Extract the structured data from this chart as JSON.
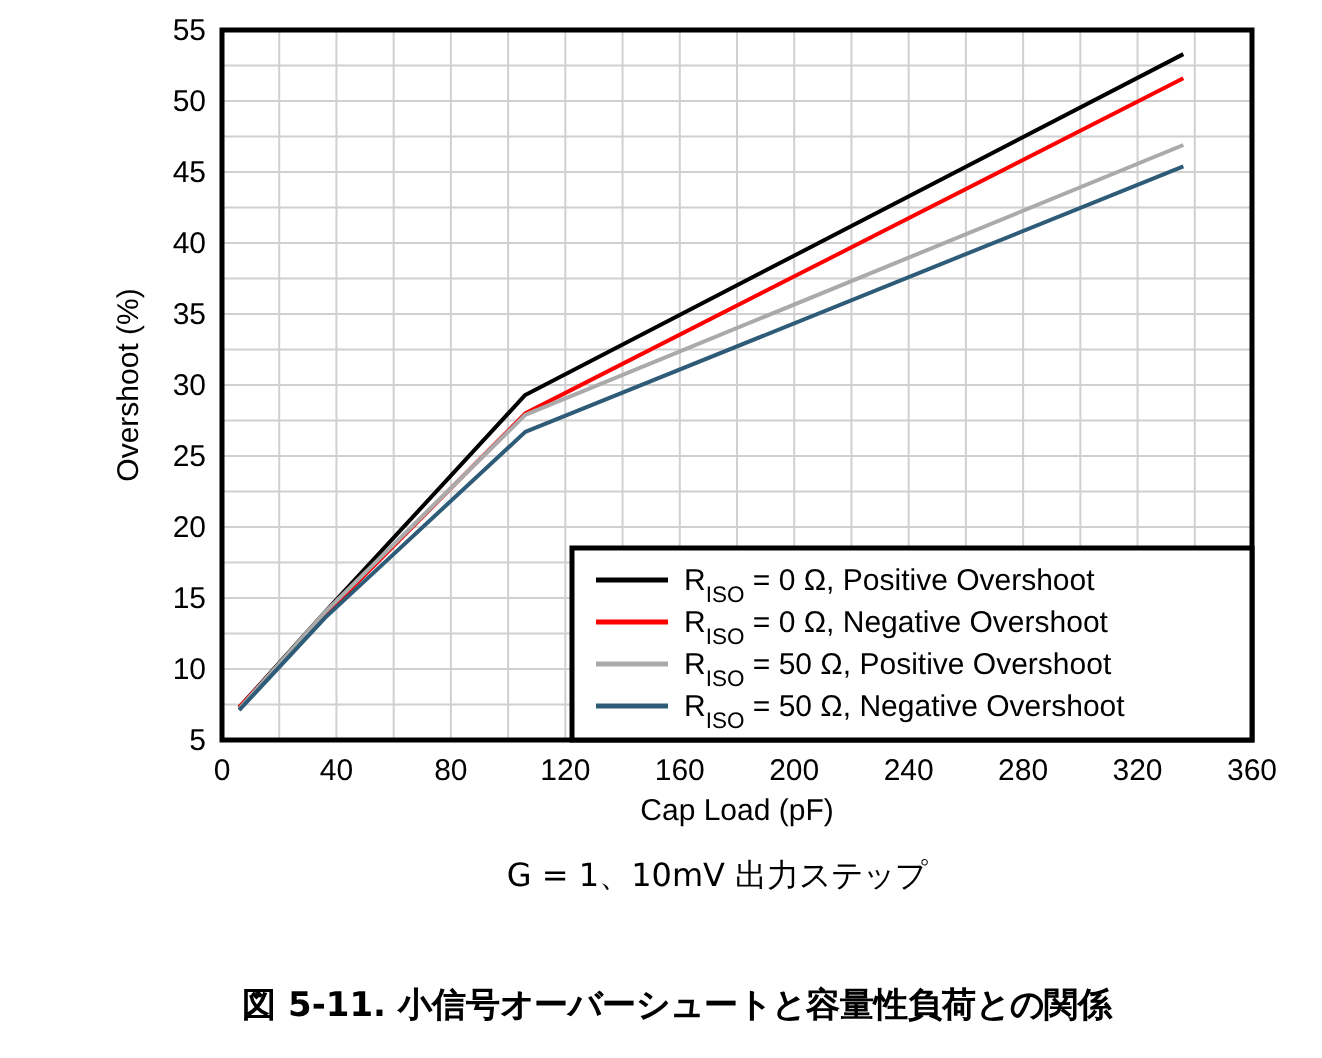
{
  "chart_data": {
    "type": "line",
    "title": "図 5-11. 小信号オーバーシュートと容量性負荷との関係",
    "subtitle": "G = 1、10mV 出力ステップ",
    "xlabel": "Cap Load (pF)",
    "ylabel": "Overshoot (%)",
    "x": [
      6,
      36,
      106,
      336
    ],
    "series": [
      {
        "name": "R$_{ISO}$ = 0 Ω, Positive Overshoot",
        "color": "#000000",
        "values": [
          7.3,
          14.0,
          29.3,
          53.3
        ]
      },
      {
        "name": "R$_{ISO}$ = 0 Ω, Negative Overshoot",
        "color": "#ff0000",
        "values": [
          7.3,
          13.8,
          28.0,
          51.6
        ]
      },
      {
        "name": "R$_{ISO}$ = 50 Ω, Positive Overshoot",
        "color": "#aaaaaa",
        "values": [
          7.2,
          14.0,
          27.9,
          46.9
        ]
      },
      {
        "name": "R$_{ISO}$ = 50 Ω, Negative Overshoot",
        "color": "#2e5c78",
        "values": [
          7.1,
          13.6,
          26.7,
          45.4
        ]
      }
    ],
    "xlim": [
      0,
      360
    ],
    "xticks": [
      0,
      40,
      80,
      120,
      160,
      200,
      240,
      280,
      320,
      360
    ],
    "ylim": [
      5,
      55
    ],
    "yticks": [
      5,
      10,
      15,
      20,
      25,
      30,
      35,
      40,
      45,
      50,
      55
    ],
    "grid": true,
    "legend": "bottom right",
    "marker": "none",
    "line_style": "solid"
  }
}
